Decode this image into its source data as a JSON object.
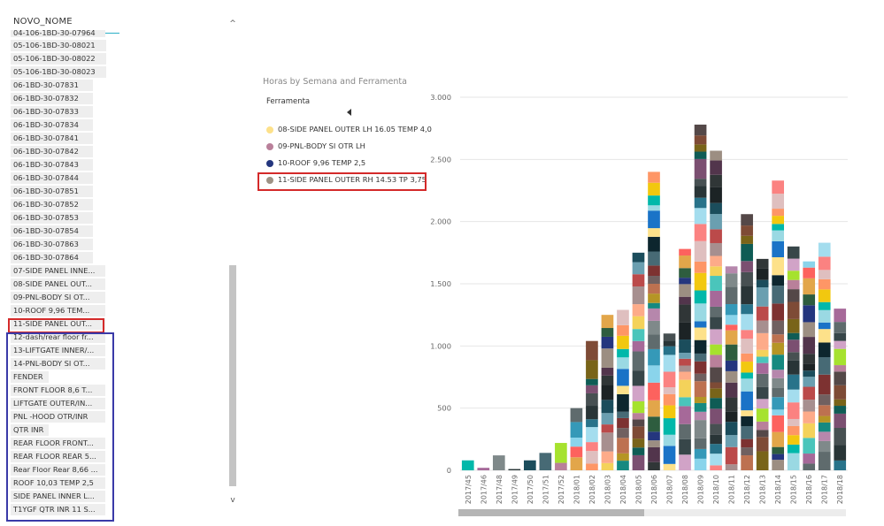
{
  "slicer": {
    "header": "NOVO_NOME",
    "items": [
      "04-106-1BD-30-07964",
      "05-106-1BD-30-08021",
      "05-106-1BD-30-08022",
      "05-106-1BD-30-08023",
      "06-1BD-30-07831",
      "06-1BD-30-07832",
      "06-1BD-30-07833",
      "06-1BD-30-07834",
      "06-1BD-30-07841",
      "06-1BD-30-07842",
      "06-1BD-30-07843",
      "06-1BD-30-07844",
      "06-1BD-30-07851",
      "06-1BD-30-07852",
      "06-1BD-30-07853",
      "06-1BD-30-07854",
      "06-1BD-30-07863",
      "06-1BD-30-07864",
      "07-SIDE PANEL INNE...",
      "08-SIDE PANEL OUT...",
      "09-PNL-BODY SI OT...",
      "10-ROOF 9,96  TEM...",
      "11-SIDE PANEL OUT...",
      "12-dash/rear floor fr...",
      "13-LIFTGATE INNER/...",
      "14-PNL-BODY SI OT...",
      "FENDER",
      "FRONT FLOOR 8,6 T...",
      "LIFTGATE OUTER/IN...",
      "PNL -HOOD OTR/INR",
      "QTR INR",
      "REAR FLOOR FRONT...",
      "REAR FLOOR REAR 5...",
      "Rear Floor Rear 8,66 ...",
      "ROOF 10,03 TEMP 2,5",
      "SIDE PANEL INNER L...",
      "T1YGF QTR INR 11 S..."
    ],
    "scroll_up": "^",
    "scroll_down": "v",
    "highlight_color": "#d42a2a",
    "group_color": "#3a3aa8"
  },
  "chart": {
    "title": "Horas by Semana and Ferramenta",
    "legend_title": "Ferramenta",
    "legend": [
      {
        "label": "08-SIDE PANEL OUTER LH 16.05 TEMP 4,0",
        "color": "#fde18a"
      },
      {
        "label": "09-PNL-BODY SI OTR LH",
        "color": "#b9809a"
      },
      {
        "label": "10-ROOF 9,96 TEMP 2,5",
        "color": "#24367e"
      },
      {
        "label": "11-SIDE PANEL OUTER RH 14.53 TP 3,75",
        "color": "#9e9285"
      }
    ]
  },
  "chart_data": {
    "type": "bar",
    "stacked": true,
    "title": "Horas by Semana and Ferramenta",
    "xlabel": "",
    "ylabel": "",
    "ylim": [
      0,
      3000
    ],
    "yticks": [
      0,
      500,
      1000,
      1500,
      2000,
      2500,
      3000
    ],
    "ytick_labels": [
      "0",
      "500",
      "1.000",
      "1.500",
      "2.000",
      "2.500",
      "3.000"
    ],
    "grid": true,
    "categories": [
      "2017/45",
      "2017/46",
      "2017/48",
      "2017/49",
      "2017/50",
      "2017/51",
      "2017/52",
      "2018/01",
      "2018/02",
      "2018/03",
      "2018/04",
      "2018/05",
      "2018/06",
      "2018/07",
      "2018/08",
      "2018/09",
      "2018/10",
      "2018/11",
      "2018/12",
      "2018/13",
      "2018/14",
      "2018/15",
      "2018/16",
      "2018/17",
      "2018/18"
    ],
    "totals": [
      80,
      20,
      120,
      10,
      80,
      140,
      220,
      500,
      1040,
      1250,
      1290,
      1750,
      2400,
      1100,
      1780,
      2780,
      2570,
      1640,
      2060,
      1700,
      2330,
      1800,
      1680,
      1830,
      1300
    ],
    "palette": [
      "#01b8aa",
      "#374649",
      "#fd625e",
      "#f2c80f",
      "#5f6b6d",
      "#8ad4eb",
      "#fe9666",
      "#a66999",
      "#3599b8",
      "#dfbfbf",
      "#4ac5bb",
      "#5f6b6d",
      "#fb8281",
      "#f4d25a",
      "#7f898a",
      "#a4ddee",
      "#fdab89",
      "#b687ac",
      "#28738a",
      "#a78f8f",
      "#168980",
      "#293537",
      "#bb4a4a",
      "#b59525",
      "#475052",
      "#6a9fb0",
      "#bd7150",
      "#7b4f71",
      "#1b4d5c",
      "#706060",
      "#0f5c55",
      "#1c2325",
      "#7d3231",
      "#796419",
      "#303637",
      "#476a75",
      "#7e4b36",
      "#52354c",
      "#0d262e",
      "#544848",
      "#9c8e82",
      "#fde18a",
      "#b9809a",
      "#24367e",
      "#1a73c7",
      "#a6e22e",
      "#2e5d3f",
      "#9ad9e3",
      "#d1a3c7",
      "#e2a64a"
    ]
  }
}
